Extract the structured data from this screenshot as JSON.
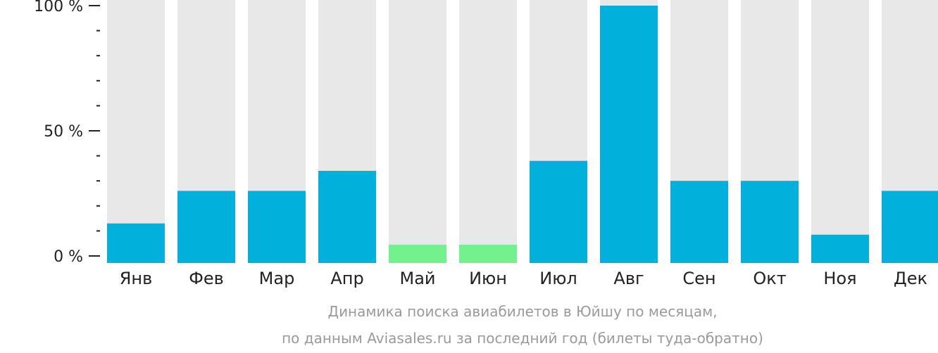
{
  "chart_data": {
    "type": "bar",
    "categories": [
      "Янв",
      "Фев",
      "Мар",
      "Апр",
      "Май",
      "Июн",
      "Июл",
      "Авг",
      "Сен",
      "Окт",
      "Ноя",
      "Дек"
    ],
    "values": [
      13,
      26,
      26,
      34,
      4.5,
      4.5,
      38,
      100,
      30,
      30,
      8.5,
      26
    ],
    "ylim": [
      0,
      100
    ],
    "yticks": [
      {
        "value": 0,
        "label": "0 %"
      },
      {
        "value": 50,
        "label": "50 %"
      },
      {
        "value": 100,
        "label": "100 %"
      }
    ],
    "minor_ticks": [
      10,
      20,
      30,
      40,
      60,
      70,
      80,
      90
    ],
    "caption_line1": "Динамика поиска авиабилетов в Юйшу по месяцам,",
    "caption_line2": "по данным Aviasales.ru за последний год (билеты туда-обратно)",
    "colors": {
      "bar": "#02b0dc",
      "bar_low": "#72f18d",
      "track": "#e8e8e8",
      "axis": "#222222"
    },
    "low_categories": [
      "Май",
      "Июн"
    ]
  }
}
